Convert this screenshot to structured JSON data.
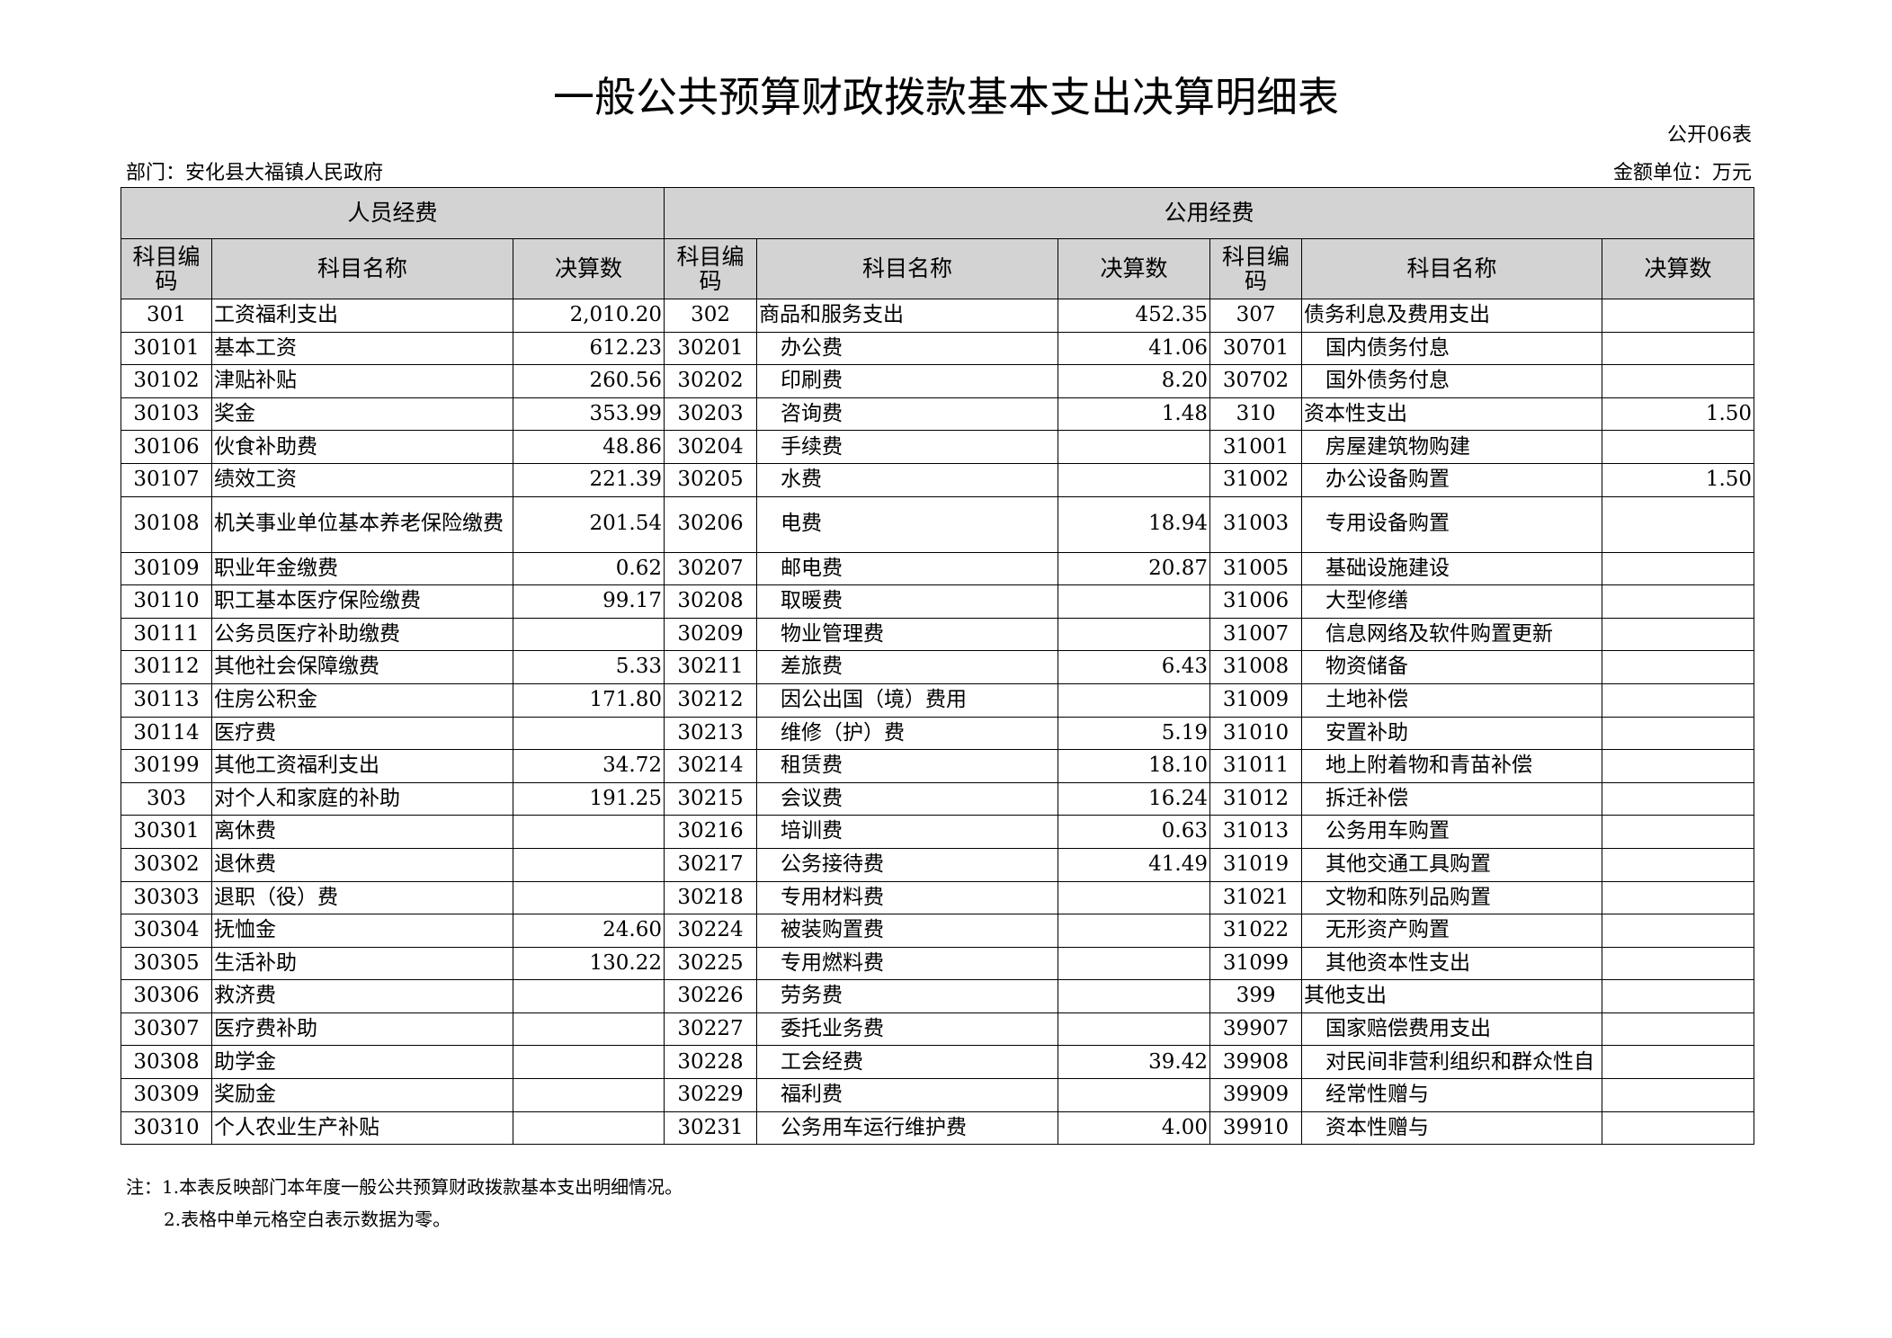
{
  "header": {
    "title": "一般公共预算财政拨款基本支出决算明细表",
    "table_no": "公开06表",
    "department": "部门：安化县大福镇人民政府",
    "unit": "金额单位：万元"
  },
  "table": {
    "groups": [
      "人员经费",
      "公用经费"
    ],
    "columns": [
      "科目编码",
      "科目名称",
      "决算数",
      "科目编码",
      "科目名称",
      "决算数",
      "科目编码",
      "科目名称",
      "决算数"
    ],
    "rows": [
      [
        "301",
        "工资福利支出",
        "2,010.20",
        "302",
        "商品和服务支出",
        "452.35",
        "307",
        "债务利息及费用支出",
        null
      ],
      [
        "30101",
        "基本工资",
        "612.23",
        "30201",
        "办公费",
        "41.06",
        "30701",
        "国内债务付息",
        null
      ],
      [
        "30102",
        "津贴补贴",
        "260.56",
        "30202",
        "印刷费",
        "8.20",
        "30702",
        "国外债务付息",
        null
      ],
      [
        "30103",
        "奖金",
        "353.99",
        "30203",
        "咨询费",
        "1.48",
        "310",
        "资本性支出",
        "1.50"
      ],
      [
        "30106",
        "伙食补助费",
        "48.86",
        "30204",
        "手续费",
        null,
        "31001",
        "房屋建筑物购建",
        null
      ],
      [
        "30107",
        "绩效工资",
        "221.39",
        "30205",
        "水费",
        null,
        "31002",
        "办公设备购置",
        "1.50"
      ],
      [
        "30108",
        "机关事业单位基本养老保险缴费",
        "201.54",
        "30206",
        "电费",
        "18.94",
        "31003",
        "专用设备购置",
        null
      ],
      [
        "30109",
        "职业年金缴费",
        "0.62",
        "30207",
        "邮电费",
        "20.87",
        "31005",
        "基础设施建设",
        null
      ],
      [
        "30110",
        "职工基本医疗保险缴费",
        "99.17",
        "30208",
        "取暖费",
        null,
        "31006",
        "大型修缮",
        null
      ],
      [
        "30111",
        "公务员医疗补助缴费",
        null,
        "30209",
        "物业管理费",
        null,
        "31007",
        "信息网络及软件购置更新",
        null
      ],
      [
        "30112",
        "其他社会保障缴费",
        "5.33",
        "30211",
        "差旅费",
        "6.43",
        "31008",
        "物资储备",
        null
      ],
      [
        "30113",
        "住房公积金",
        "171.80",
        "30212",
        "因公出国（境）费用",
        null,
        "31009",
        "土地补偿",
        null
      ],
      [
        "30114",
        "医疗费",
        null,
        "30213",
        "维修（护）费",
        "5.19",
        "31010",
        "安置补助",
        null
      ],
      [
        "30199",
        "其他工资福利支出",
        "34.72",
        "30214",
        "租赁费",
        "18.10",
        "31011",
        "地上附着物和青苗补偿",
        null
      ],
      [
        "303",
        "对个人和家庭的补助",
        "191.25",
        "30215",
        "会议费",
        "16.24",
        "31012",
        "拆迁补偿",
        null
      ],
      [
        "30301",
        "离休费",
        null,
        "30216",
        "培训费",
        "0.63",
        "31013",
        "公务用车购置",
        null
      ],
      [
        "30302",
        "退休费",
        null,
        "30217",
        "公务接待费",
        "41.49",
        "31019",
        "其他交通工具购置",
        null
      ],
      [
        "30303",
        "退职（役）费",
        null,
        "30218",
        "专用材料费",
        null,
        "31021",
        "文物和陈列品购置",
        null
      ],
      [
        "30304",
        "抚恤金",
        "24.60",
        "30224",
        "被装购置费",
        null,
        "31022",
        "无形资产购置",
        null
      ],
      [
        "30305",
        "生活补助",
        "130.22",
        "30225",
        "专用燃料费",
        null,
        "31099",
        "其他资本性支出",
        null
      ],
      [
        "30306",
        "救济费",
        null,
        "30226",
        "劳务费",
        null,
        "399",
        "其他支出",
        null
      ],
      [
        "30307",
        "医疗费补助",
        null,
        "30227",
        "委托业务费",
        null,
        "39907",
        "国家赔偿费用支出",
        null
      ],
      [
        "30308",
        "助学金",
        null,
        "30228",
        "工会经费",
        "39.42",
        "39908",
        "对民间非营利组织和群众性自",
        null
      ],
      [
        "30309",
        "奖励金",
        null,
        "30229",
        "福利费",
        null,
        "39909",
        "经常性赠与",
        null
      ],
      [
        "30310",
        "个人农业生产补贴",
        null,
        "30231",
        "公务用车运行维护费",
        "4.00",
        "39910",
        "资本性赠与",
        null
      ]
    ]
  },
  "notes": [
    "注：1.本表反映部门本年度一般公共预算财政拨款基本支出明细情况。",
    "2.表格中单元格空白表示数据为零。"
  ]
}
